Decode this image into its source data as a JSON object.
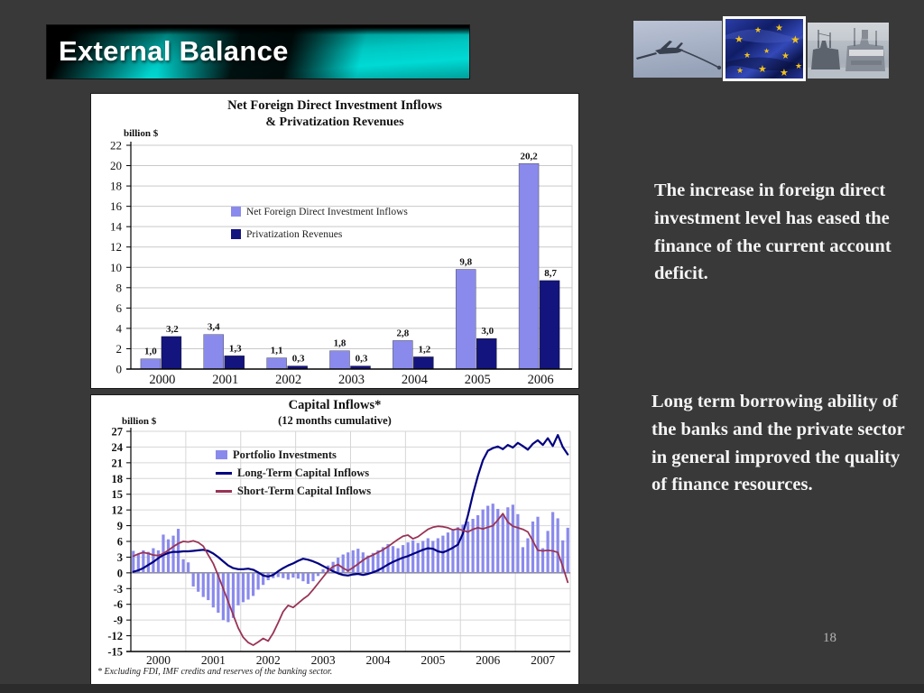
{
  "title_bar": {
    "text": "External Balance"
  },
  "slide": {
    "page_number": "18"
  },
  "colors": {
    "background": "#393939",
    "teal_accent": "#00c7c2",
    "portfolio_bar": "#8a8aec",
    "privatization_bar": "#14147e",
    "long_term_line": "#000080",
    "short_term_line": "#993355"
  },
  "photos": [
    {
      "name": "refueling-aircraft-photo"
    },
    {
      "name": "eu-flag-photo"
    },
    {
      "name": "cargo-ships-photo"
    }
  ],
  "text_blocks": [
    {
      "text": "The increase in foreign direct investment level has eased the finance of the current account deficit."
    },
    {
      "text": "Long term borrowing ability of the banks and the private sector in general improved the quality of finance resources."
    }
  ],
  "chart_data": [
    {
      "type": "bar",
      "title_line1": "Net Foreign Direct Investment Inflows",
      "title_line2": "& Privatization Revenues",
      "unit_label": "billion $",
      "categories": [
        "2000",
        "2001",
        "2002",
        "2003",
        "2004",
        "2005",
        "2006"
      ],
      "ylim": [
        0,
        22
      ],
      "ytick_step": 2,
      "grid": true,
      "legend_position": "upper-left-inside",
      "series": [
        {
          "name": "Net Foreign Direct Investment Inflows",
          "color": "#8a8aec",
          "values": [
            1.0,
            3.4,
            1.1,
            1.8,
            2.8,
            9.8,
            20.2
          ],
          "labels": [
            "1,0",
            "3,4",
            "1,1",
            "1,8",
            "2,8",
            "9,8",
            "20,2"
          ]
        },
        {
          "name": "Privatization Revenues",
          "color": "#14147e",
          "values": [
            3.2,
            1.3,
            0.3,
            0.3,
            1.2,
            3.0,
            8.7
          ],
          "labels": [
            "3,2",
            "1,3",
            "0,3",
            "0,3",
            "1,2",
            "3,0",
            "8,7"
          ]
        }
      ]
    },
    {
      "type": "bar+line",
      "title": "Capital Inflows*",
      "subtitle": "(12 months cumulative)",
      "unit_label": "billion $",
      "x_labels": [
        "2000",
        "2001",
        "2002",
        "2003",
        "2004",
        "2005",
        "2006",
        "2007"
      ],
      "ylim": [
        -15,
        27
      ],
      "ytick_step": 3,
      "grid": true,
      "legend_position": "upper-left-inside",
      "footnote": "* Excluding FDI, IMF credits and reserves of the banking sector.",
      "series": [
        {
          "name": "Portfolio Investments",
          "type": "bar",
          "color": "#8a8aec",
          "values": [
            4.2,
            3.7,
            4.3,
            4.0,
            4.7,
            4.3,
            7.3,
            6.4,
            7.1,
            8.4,
            2.6,
            2.0,
            -2.6,
            -3.6,
            -4.6,
            -5.2,
            -6.6,
            -7.6,
            -9.0,
            -9.4,
            -8.6,
            -6.2,
            -5.6,
            -5.1,
            -4.4,
            -3.2,
            -2.3,
            -1.4,
            -1.0,
            -0.8,
            -1.0,
            -1.3,
            -0.9,
            -1.1,
            -1.6,
            -2.1,
            -1.6,
            -0.6,
            0.7,
            1.4,
            2.1,
            2.9,
            3.5,
            3.9,
            4.3,
            4.6,
            3.9,
            3.3,
            3.8,
            4.3,
            4.9,
            5.5,
            5.1,
            4.7,
            5.3,
            5.8,
            6.2,
            5.7,
            6.1,
            6.6,
            6.1,
            6.6,
            7.1,
            7.7,
            8.2,
            8.7,
            9.2,
            9.8,
            10.3,
            11.0,
            12.1,
            12.8,
            13.2,
            12.2,
            11.1,
            12.5,
            13.0,
            11.2,
            4.9,
            6.6,
            9.8,
            10.7,
            4.7,
            8.0,
            11.6,
            10.4,
            6.2,
            8.6
          ]
        },
        {
          "name": "Long-Term Capital Inflows",
          "type": "line",
          "color": "#000080",
          "values": [
            0.2,
            0.5,
            0.9,
            1.5,
            2.1,
            2.8,
            3.4,
            3.8,
            4.0,
            4.0,
            4.1,
            4.1,
            4.2,
            4.3,
            4.4,
            4.2,
            3.7,
            3.0,
            2.2,
            1.4,
            0.9,
            0.7,
            0.7,
            0.8,
            0.6,
            0.1,
            -0.5,
            -0.7,
            -0.4,
            0.3,
            0.9,
            1.4,
            1.8,
            2.3,
            2.7,
            2.5,
            2.2,
            1.8,
            1.3,
            0.8,
            0.3,
            -0.1,
            -0.4,
            -0.5,
            -0.3,
            -0.2,
            -0.4,
            -0.2,
            0.1,
            0.5,
            1.0,
            1.6,
            2.1,
            2.5,
            2.9,
            3.2,
            3.6,
            4.0,
            4.4,
            4.7,
            4.6,
            4.1,
            3.9,
            4.3,
            4.8,
            5.4,
            7.5,
            11.0,
            15.0,
            18.5,
            21.5,
            23.3,
            23.8,
            24.1,
            23.6,
            24.4,
            23.9,
            24.8,
            24.2,
            23.5,
            24.6,
            25.3,
            24.4,
            25.7,
            24.2,
            26.3,
            24.0,
            22.6
          ]
        },
        {
          "name": "Short-Term Capital Inflows",
          "type": "line",
          "color": "#993355",
          "values": [
            3.2,
            3.6,
            3.9,
            3.7,
            3.4,
            3.3,
            3.7,
            4.3,
            5.0,
            5.6,
            6.0,
            5.9,
            6.1,
            5.8,
            5.1,
            3.4,
            1.8,
            -0.5,
            -3.0,
            -5.5,
            -8.0,
            -10.5,
            -12.3,
            -13.3,
            -13.8,
            -13.2,
            -12.5,
            -13.0,
            -11.5,
            -9.5,
            -7.4,
            -6.2,
            -6.6,
            -5.8,
            -5.0,
            -4.3,
            -3.2,
            -2.0,
            -0.8,
            0.4,
            1.2,
            1.6,
            0.9,
            0.4,
            1.0,
            1.7,
            2.4,
            3.0,
            3.4,
            3.9,
            4.4,
            5.0,
            5.7,
            6.4,
            7.0,
            7.2,
            6.5,
            6.9,
            7.6,
            8.3,
            8.7,
            8.9,
            8.8,
            8.6,
            8.2,
            8.4,
            8.1,
            7.8,
            8.3,
            8.6,
            8.4,
            8.7,
            9.0,
            10.1,
            11.3,
            9.7,
            8.9,
            8.6,
            8.3,
            7.8,
            6.1,
            4.3,
            4.2,
            4.3,
            4.2,
            3.9,
            1.2,
            -1.8
          ]
        }
      ]
    }
  ]
}
